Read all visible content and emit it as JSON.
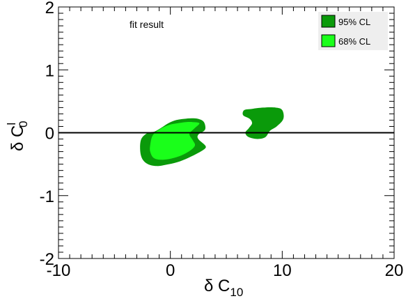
{
  "chart_data": {
    "type": "area",
    "title": "",
    "annotation": "fit result",
    "xlabel": {
      "main": "δ C",
      "sub": "10"
    },
    "ylabel": {
      "main": "δ C",
      "sub": "0",
      "sup": "l"
    },
    "xlim": [
      -10,
      20
    ],
    "ylim": [
      -2,
      2
    ],
    "xticks": [
      -10,
      0,
      10,
      20
    ],
    "yticks": [
      -2,
      -1,
      0,
      1,
      2
    ],
    "xtick_labels": [
      "-10",
      "0",
      "10",
      "20"
    ],
    "ytick_labels": [
      "-2",
      "-1",
      "0",
      "1",
      "2"
    ],
    "reference_line_y": 0,
    "grid": false,
    "legend_position": "top-right",
    "series": [
      {
        "name": "95% CL",
        "color": "#0a9a0a",
        "regions": [
          [
            [
              -2.7,
              -0.28
            ],
            [
              -2.6,
              -0.1
            ],
            [
              -2.0,
              0.0
            ],
            [
              -1.4,
              0.02
            ],
            [
              -0.8,
              0.08
            ],
            [
              -0.2,
              0.15
            ],
            [
              0.5,
              0.2
            ],
            [
              1.2,
              0.22
            ],
            [
              1.9,
              0.23
            ],
            [
              2.5,
              0.22
            ],
            [
              3.0,
              0.17
            ],
            [
              3.1,
              0.05
            ],
            [
              2.5,
              -0.03
            ],
            [
              2.5,
              -0.1
            ],
            [
              3.1,
              -0.2
            ],
            [
              3.1,
              -0.25
            ],
            [
              2.5,
              -0.32
            ],
            [
              1.6,
              -0.4
            ],
            [
              0.6,
              -0.47
            ],
            [
              -0.4,
              -0.51
            ],
            [
              -1.2,
              -0.53
            ],
            [
              -2.0,
              -0.5
            ],
            [
              -2.5,
              -0.42
            ]
          ],
          [
            [
              6.5,
              0.28
            ],
            [
              6.6,
              0.36
            ],
            [
              7.3,
              0.38
            ],
            [
              8.3,
              0.4
            ],
            [
              9.4,
              0.4
            ],
            [
              10.0,
              0.36
            ],
            [
              10.1,
              0.22
            ],
            [
              9.5,
              0.1
            ],
            [
              8.9,
              0.03
            ],
            [
              8.5,
              -0.07
            ],
            [
              7.8,
              -0.1
            ],
            [
              7.0,
              -0.07
            ],
            [
              6.7,
              0.0
            ],
            [
              7.0,
              0.07
            ],
            [
              7.3,
              0.15
            ],
            [
              7.1,
              0.22
            ]
          ]
        ]
      },
      {
        "name": "68% CL",
        "color": "#1aff1a",
        "regions": [
          [
            [
              -1.8,
              -0.2
            ],
            [
              -1.6,
              -0.05
            ],
            [
              -1.0,
              0.05
            ],
            [
              -0.2,
              0.12
            ],
            [
              0.6,
              0.15
            ],
            [
              1.4,
              0.17
            ],
            [
              2.0,
              0.17
            ],
            [
              2.6,
              0.15
            ],
            [
              2.1,
              0.06
            ],
            [
              1.7,
              -0.02
            ],
            [
              2.0,
              -0.12
            ],
            [
              2.2,
              -0.2
            ],
            [
              1.8,
              -0.28
            ],
            [
              1.0,
              -0.36
            ],
            [
              0.1,
              -0.41
            ],
            [
              -0.8,
              -0.43
            ],
            [
              -1.5,
              -0.4
            ],
            [
              -1.8,
              -0.3
            ]
          ]
        ]
      }
    ]
  }
}
